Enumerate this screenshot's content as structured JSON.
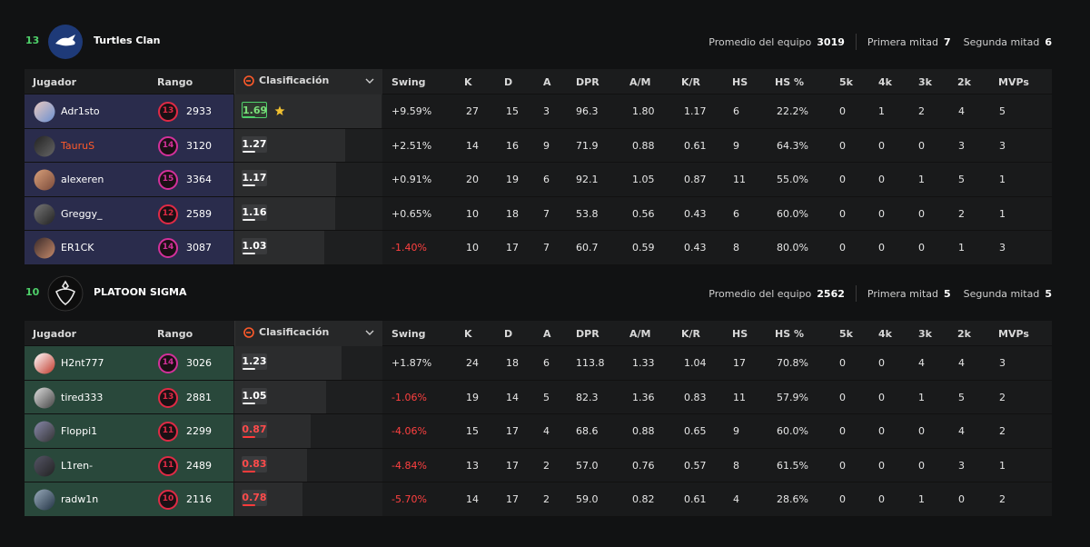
{
  "columns": [
    "Jugador",
    "Rango",
    "Clasificación",
    "Swing",
    "K",
    "D",
    "A",
    "DPR",
    "A/M",
    "K/R",
    "HS",
    "HS %",
    "5k",
    "4k",
    "3k",
    "2k",
    "MVPs"
  ],
  "teams": [
    {
      "score": "13",
      "name": "Turtles Clan",
      "average_label": "Promedio del equipo",
      "average": "3019",
      "first_half_label": "Primera mitad",
      "first_half": "7",
      "second_half_label": "Segunda mitad",
      "second_half": "6",
      "players": [
        {
          "name": "Adr1sto",
          "rank": "13",
          "rank_points": "2933",
          "rating": 1.69,
          "stats": [
            "+9.59%",
            "27",
            "15",
            "3",
            "96.3",
            "1.80",
            "1.17",
            "6",
            "22.2%",
            "0",
            "1",
            "2",
            "4",
            "5"
          ]
        },
        {
          "name": "TauruS",
          "rank": "14",
          "rank_points": "3120",
          "rating": 1.27,
          "stats": [
            "+2.51%",
            "14",
            "16",
            "9",
            "71.9",
            "0.88",
            "0.61",
            "9",
            "64.3%",
            "0",
            "0",
            "0",
            "3",
            "3"
          ]
        },
        {
          "name": "alexeren",
          "rank": "15",
          "rank_points": "3364",
          "rating": 1.17,
          "stats": [
            "+0.91%",
            "20",
            "19",
            "6",
            "92.1",
            "1.05",
            "0.87",
            "11",
            "55.0%",
            "0",
            "0",
            "1",
            "5",
            "1"
          ]
        },
        {
          "name": "Greggy_",
          "rank": "12",
          "rank_points": "2589",
          "rating": 1.16,
          "stats": [
            "+0.65%",
            "10",
            "18",
            "7",
            "53.8",
            "0.56",
            "0.43",
            "6",
            "60.0%",
            "0",
            "0",
            "0",
            "2",
            "1"
          ]
        },
        {
          "name": "ER1CK",
          "rank": "14",
          "rank_points": "3087",
          "rating": 1.03,
          "stats": [
            "-1.40%",
            "10",
            "17",
            "7",
            "60.7",
            "0.59",
            "0.43",
            "8",
            "80.0%",
            "0",
            "0",
            "0",
            "1",
            "3"
          ]
        }
      ]
    },
    {
      "score": "10",
      "name": "PLATOON SIGMA",
      "average_label": "Promedio del equipo",
      "average": "2562",
      "first_half_label": "Primera mitad",
      "first_half": "5",
      "second_half_label": "Segunda mitad",
      "second_half": "5",
      "players": [
        {
          "name": "H2nt777",
          "rank": "14",
          "rank_points": "3026",
          "rating": 1.23,
          "stats": [
            "+1.87%",
            "24",
            "18",
            "6",
            "113.8",
            "1.33",
            "1.04",
            "17",
            "70.8%",
            "0",
            "0",
            "4",
            "4",
            "3"
          ]
        },
        {
          "name": "tired333",
          "rank": "13",
          "rank_points": "2881",
          "rating": 1.05,
          "stats": [
            "-1.06%",
            "19",
            "14",
            "5",
            "82.3",
            "1.36",
            "0.83",
            "11",
            "57.9%",
            "0",
            "0",
            "1",
            "5",
            "2"
          ]
        },
        {
          "name": "Floppi1",
          "rank": "11",
          "rank_points": "2299",
          "rating": 0.87,
          "stats": [
            "-4.06%",
            "15",
            "17",
            "4",
            "68.6",
            "0.88",
            "0.65",
            "9",
            "60.0%",
            "0",
            "0",
            "0",
            "4",
            "2"
          ]
        },
        {
          "name": "L1ren-",
          "rank": "11",
          "rank_points": "2489",
          "rating": 0.83,
          "stats": [
            "-4.84%",
            "13",
            "17",
            "2",
            "57.0",
            "0.76",
            "0.57",
            "8",
            "61.5%",
            "0",
            "0",
            "0",
            "3",
            "1"
          ]
        },
        {
          "name": "radw1n",
          "rank": "10",
          "rank_points": "2116",
          "rating": 0.78,
          "stats": [
            "-5.70%",
            "14",
            "17",
            "2",
            "59.0",
            "0.82",
            "0.61",
            "4",
            "28.6%",
            "0",
            "0",
            "1",
            "0",
            "2"
          ]
        }
      ]
    }
  ]
}
